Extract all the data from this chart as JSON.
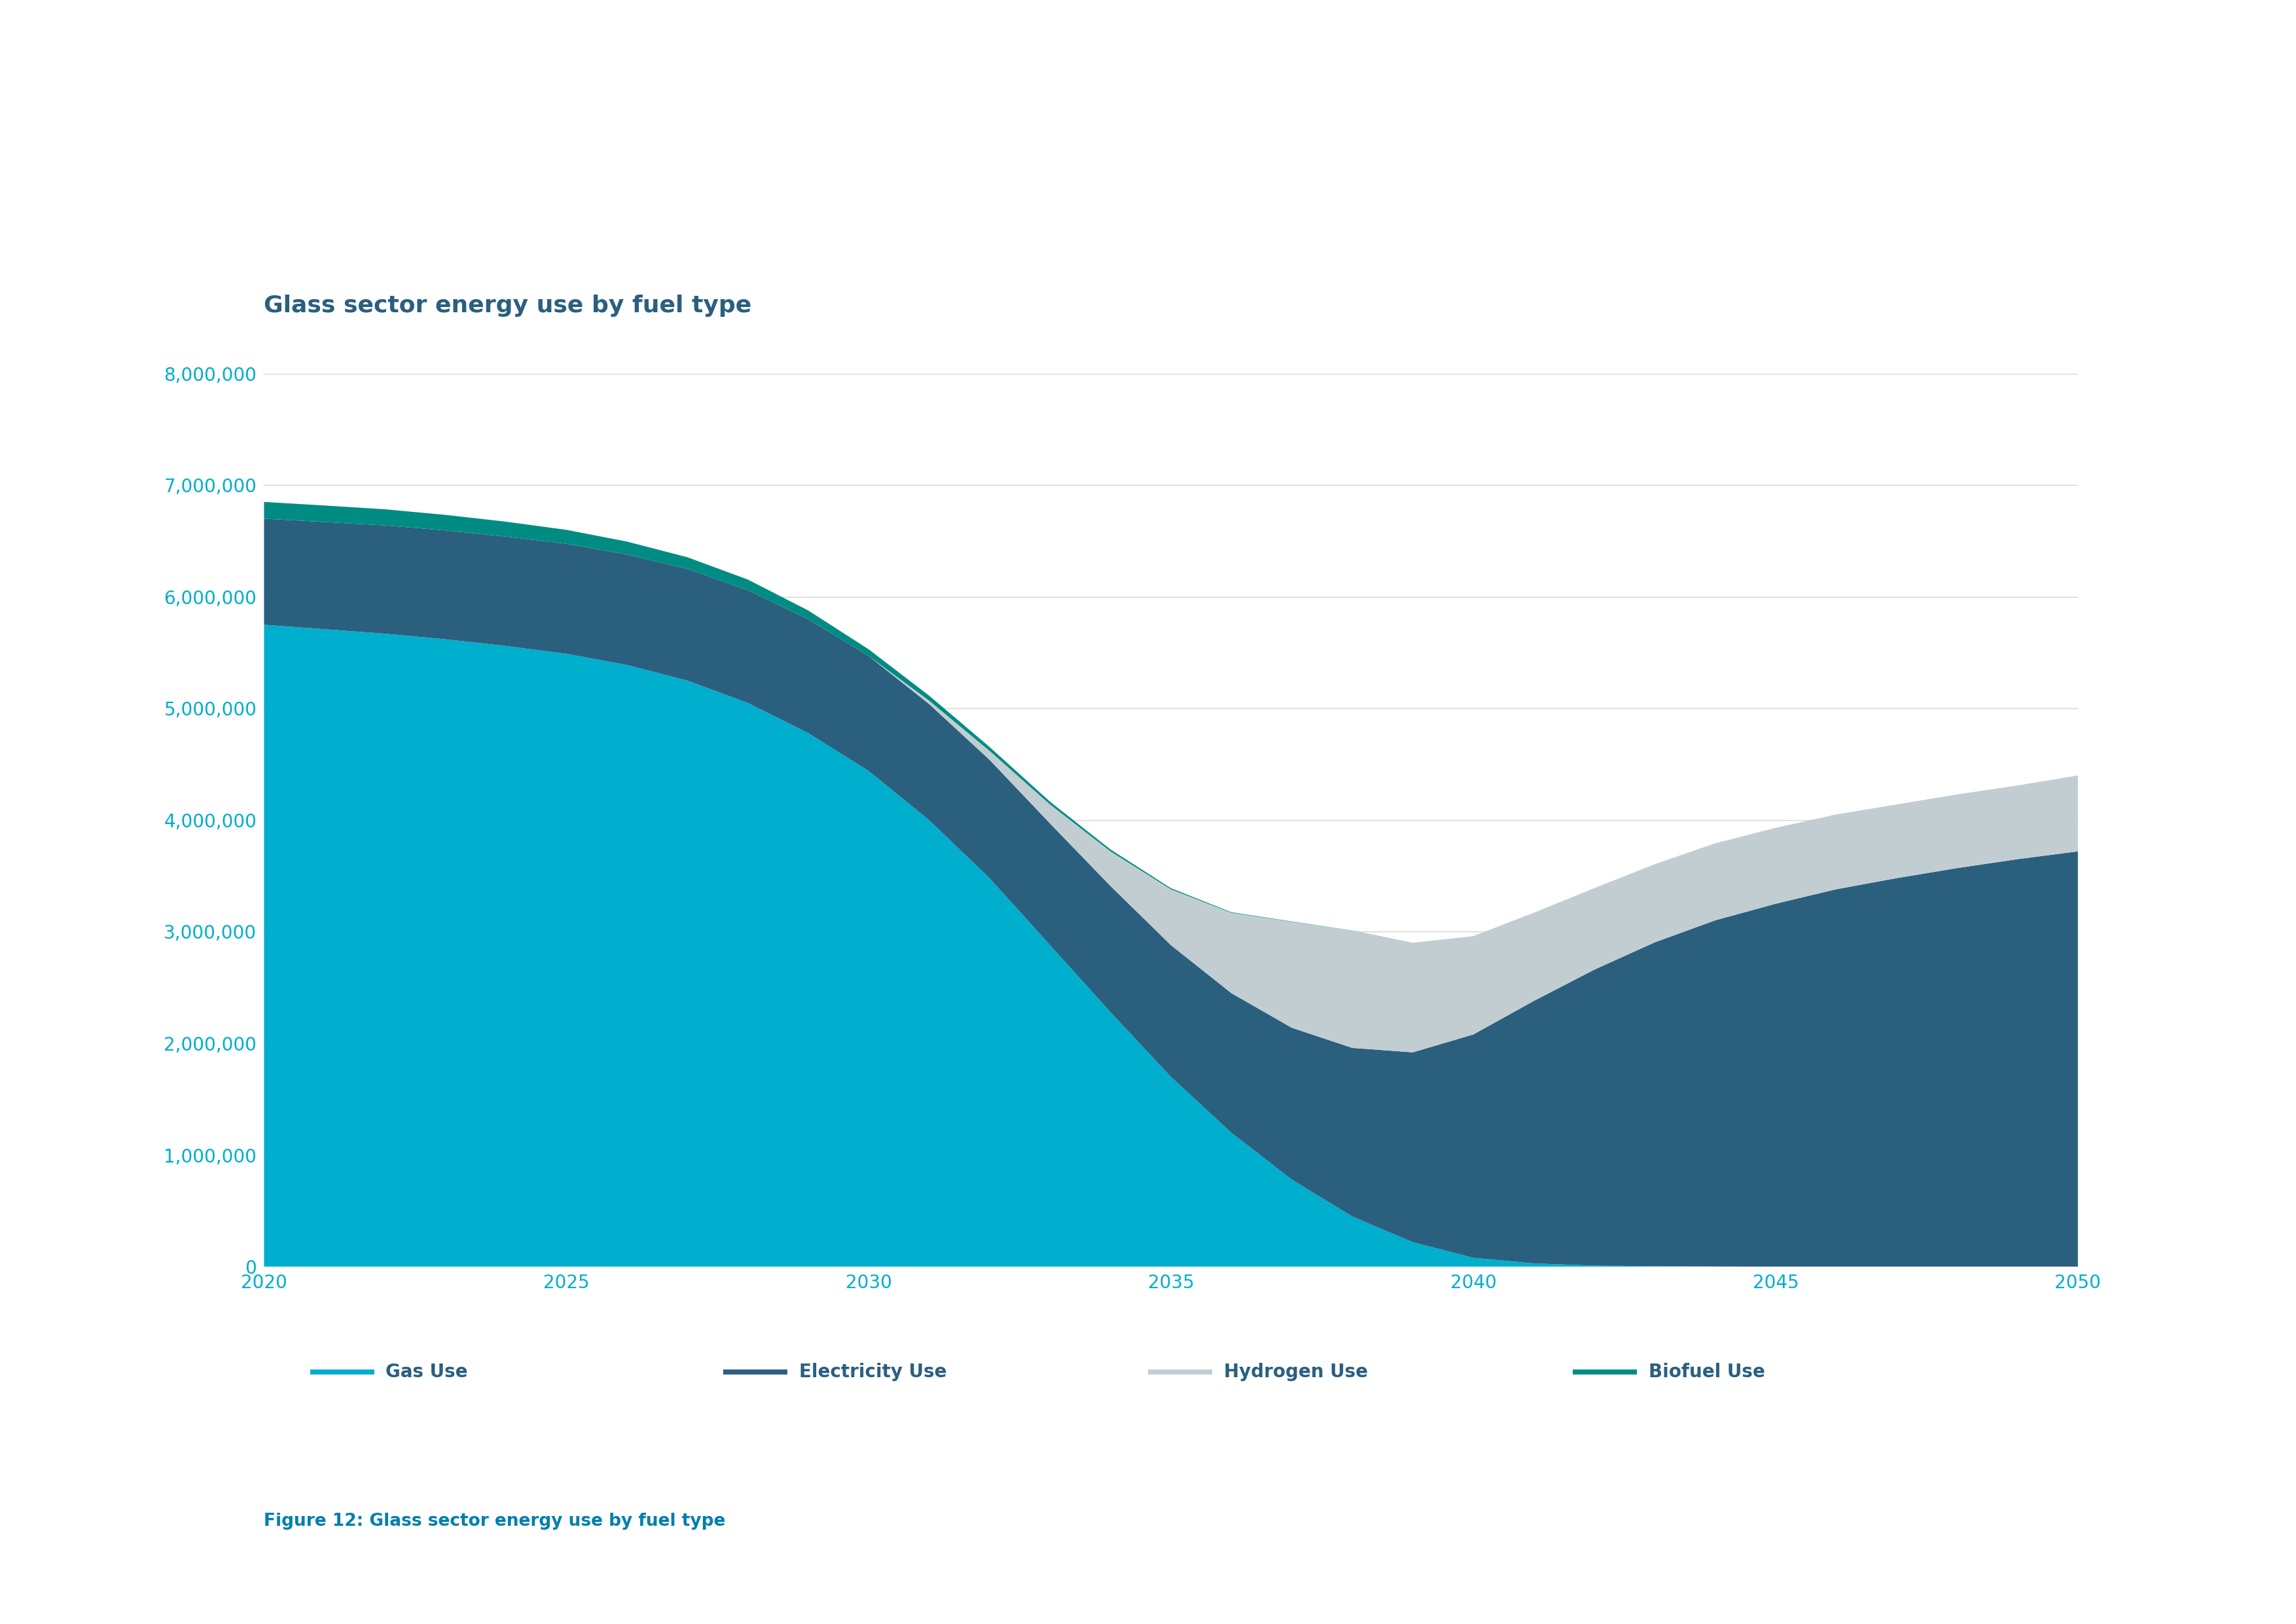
{
  "title": "Glass sector energy use by fuel type",
  "caption": "Figure 12: Glass sector energy use by fuel type",
  "years": [
    2020,
    2021,
    2022,
    2023,
    2024,
    2025,
    2026,
    2027,
    2028,
    2029,
    2030,
    2031,
    2032,
    2033,
    2034,
    2035,
    2036,
    2037,
    2038,
    2039,
    2040,
    2041,
    2042,
    2043,
    2044,
    2045,
    2046,
    2047,
    2048,
    2049,
    2050
  ],
  "gas_use": [
    5750000,
    5710000,
    5670000,
    5620000,
    5560000,
    5490000,
    5390000,
    5250000,
    5050000,
    4780000,
    4440000,
    4000000,
    3480000,
    2880000,
    2280000,
    1700000,
    1200000,
    780000,
    450000,
    220000,
    80000,
    30000,
    10000,
    5000,
    2000,
    800,
    300,
    100,
    50,
    20,
    10
  ],
  "electricity_use": [
    950000,
    960000,
    970000,
    975000,
    980000,
    985000,
    990000,
    1000000,
    1010000,
    1020000,
    1030000,
    1040000,
    1060000,
    1090000,
    1130000,
    1180000,
    1250000,
    1360000,
    1510000,
    1700000,
    2000000,
    2350000,
    2650000,
    2900000,
    3100000,
    3250000,
    3380000,
    3480000,
    3570000,
    3650000,
    3720000
  ],
  "hydrogen_use": [
    0,
    0,
    0,
    0,
    0,
    0,
    0,
    0,
    0,
    0,
    0,
    30000,
    80000,
    170000,
    310000,
    500000,
    720000,
    950000,
    1050000,
    980000,
    880000,
    790000,
    730000,
    700000,
    690000,
    680000,
    670000,
    660000,
    660000,
    660000,
    680000
  ],
  "biofuel_use": [
    150000,
    148000,
    144000,
    139000,
    133000,
    125000,
    115000,
    105000,
    95000,
    78000,
    60000,
    45000,
    35000,
    25000,
    17000,
    10000,
    5000,
    2500,
    1200,
    600,
    200,
    80,
    30,
    10,
    5,
    2,
    1,
    1,
    1,
    1,
    0
  ],
  "colors": {
    "gas_use": "#00AECD",
    "electricity_use": "#2B5F7E",
    "hydrogen_use": "#C2CDD2",
    "biofuel_use": "#008C82"
  },
  "legend_labels": [
    "Gas Use",
    "Electricity Use",
    "Hydrogen Use",
    "Biofuel Use"
  ],
  "ylim": [
    0,
    8000000
  ],
  "yticks": [
    0,
    1000000,
    2000000,
    3000000,
    4000000,
    5000000,
    6000000,
    7000000,
    8000000
  ],
  "ytick_labels": [
    "0",
    "1,000,000",
    "2,000,000",
    "3,000,000",
    "4,000,000",
    "5,000,000",
    "6,000,000",
    "7,000,000",
    "8,000,000"
  ],
  "xticks": [
    2020,
    2025,
    2030,
    2035,
    2040,
    2045,
    2050
  ],
  "title_color": "#2B5F7E",
  "axis_color": "#00AECD",
  "grid_color": "#D5D5D5",
  "caption_color": "#007FAD",
  "background_color": "#FFFFFF",
  "legend_line_colors": [
    "#00AECD",
    "#2B5F7E",
    "#C2CDD2",
    "#008C82"
  ]
}
